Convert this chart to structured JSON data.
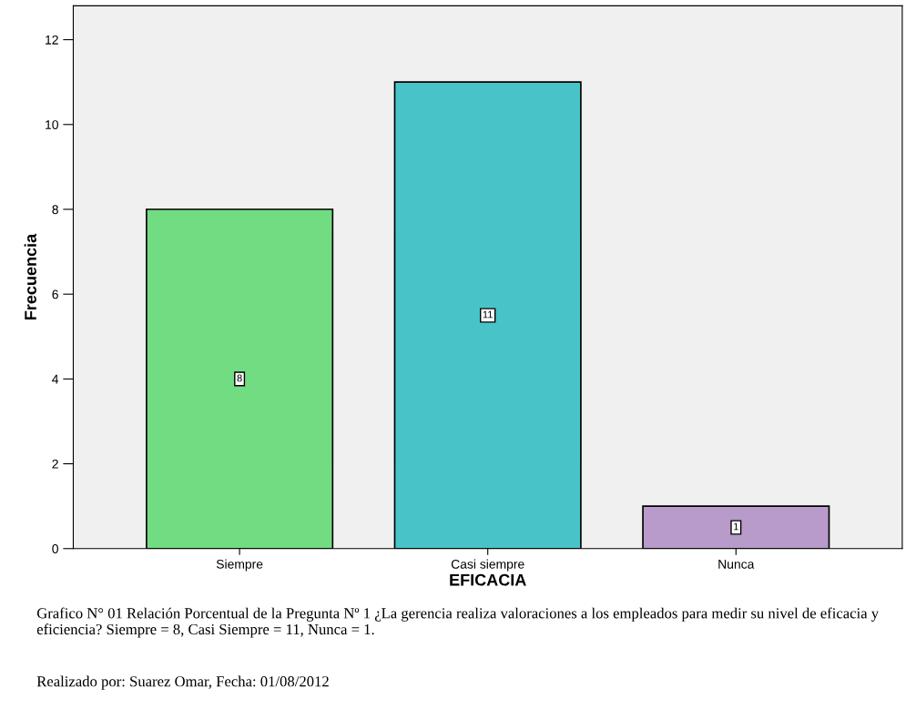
{
  "chart_data": {
    "type": "bar",
    "xlabel": "EFICACIA",
    "ylabel": "Frecuencia",
    "categories": [
      "Siempre",
      "Casi siempre",
      "Nunca"
    ],
    "values": [
      8,
      11,
      1
    ],
    "colors": [
      "#72dc82",
      "#48c4c8",
      "#b89acb"
    ],
    "ylim": [
      0,
      12.8
    ],
    "yticks": [
      0,
      2,
      4,
      6,
      8,
      10,
      12
    ],
    "data_labels": true,
    "grid": false,
    "legend": false,
    "annotations": [
      "Grafico N° 01 Relación Porcentual de la Pregunta Nº 1 ¿La gerencia realiza valoraciones a los empleados para medir su nivel de eficacia y eficiencia? Siempre = 8, Casi Siempre = 11, Nunca = 1.",
      "Realizado por: Suarez Omar, Fecha: 01/08/2012"
    ]
  }
}
